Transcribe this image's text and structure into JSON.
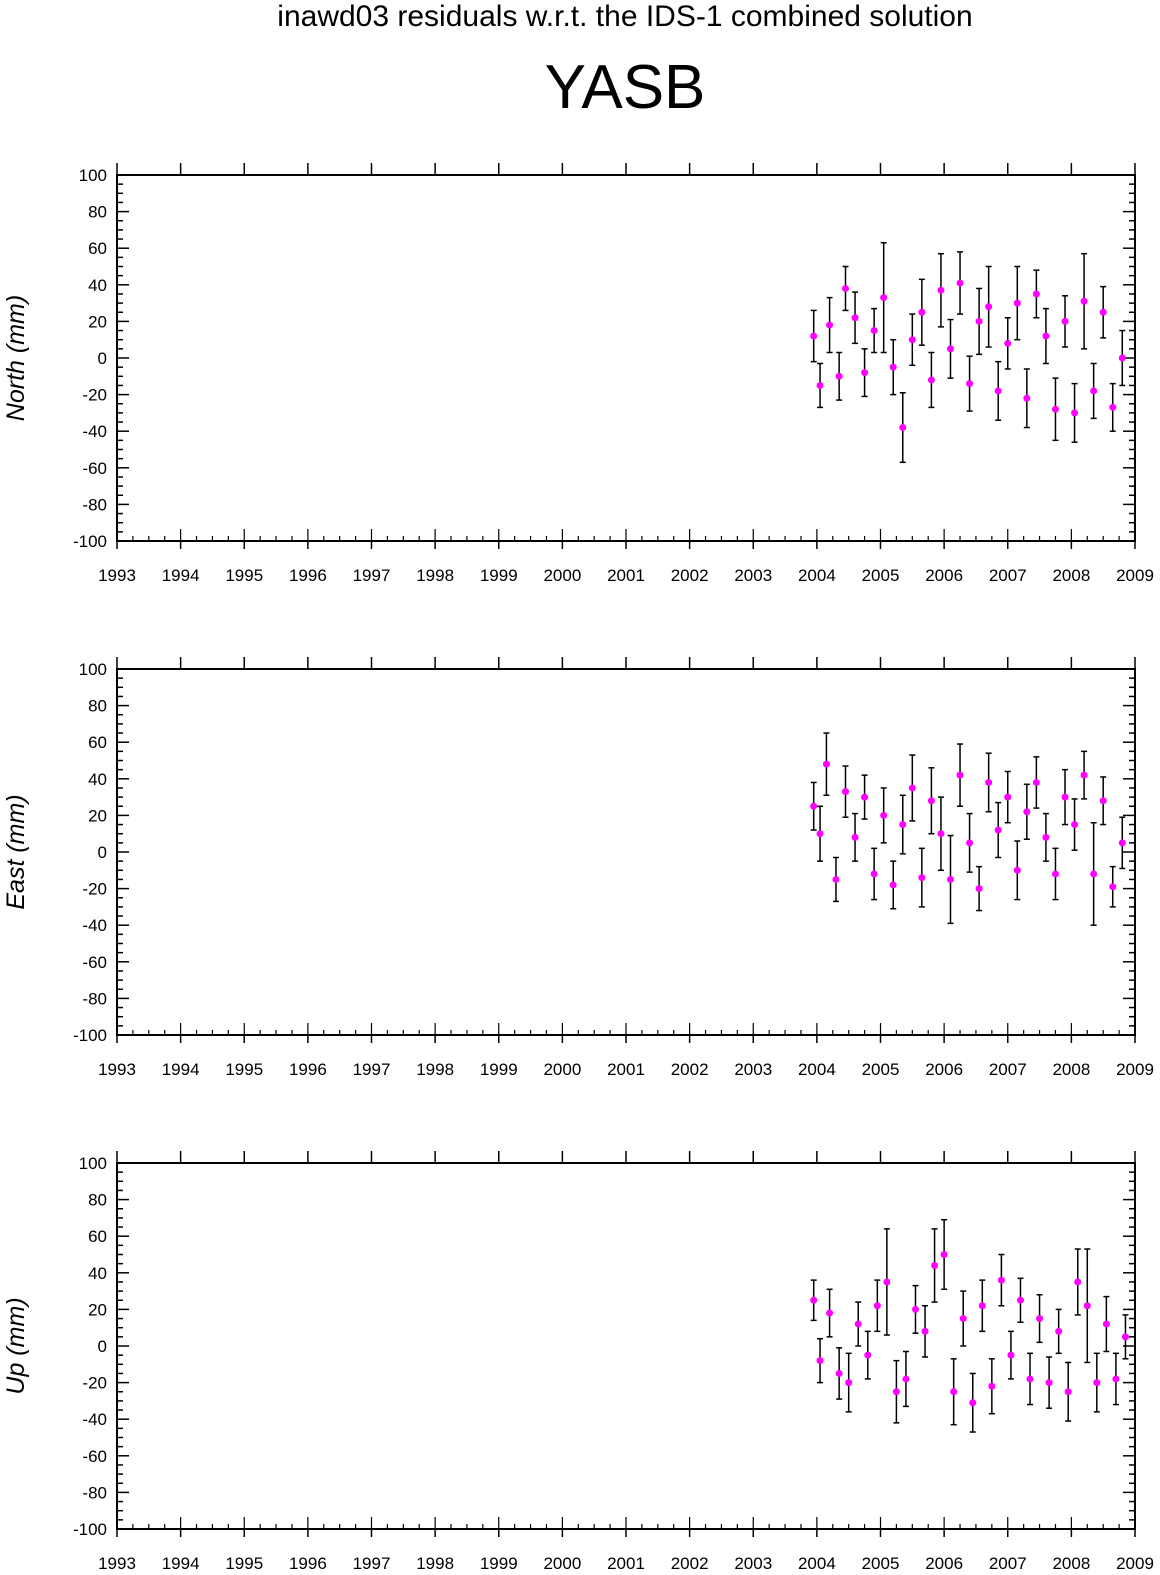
{
  "subtitle": "inawd03 residuals w.r.t. the IDS-1 combined solution",
  "title": "YASB",
  "colors": {
    "marker": "#ff00ff",
    "errorbar": "#000000",
    "axes": "#000000"
  },
  "chart_data": [
    {
      "type": "scatter",
      "ylabel": "North (mm)",
      "xlim": [
        1993,
        2009
      ],
      "ylim": [
        -100,
        100
      ],
      "x_ticks": [
        "1993",
        "1994",
        "1995",
        "1996",
        "1997",
        "1998",
        "1999",
        "2000",
        "2001",
        "2002",
        "2003",
        "2004",
        "2005",
        "2006",
        "2007",
        "2008",
        "2009"
      ],
      "y_ticks": [
        "100",
        "80",
        "60",
        "40",
        "20",
        "0",
        "-20",
        "-40",
        "-60",
        "-80",
        "-100"
      ],
      "grid": false,
      "error_bars": true,
      "series": [
        {
          "x": [
            2003.95,
            2004.05,
            2004.2,
            2004.35,
            2004.45,
            2004.6,
            2004.75,
            2004.9,
            2005.05,
            2005.2,
            2005.35,
            2005.5,
            2005.65,
            2005.8,
            2005.95,
            2006.1,
            2006.25,
            2006.4,
            2006.55,
            2006.7,
            2006.85,
            2007.0,
            2007.15,
            2007.3,
            2007.45,
            2007.6,
            2007.75,
            2007.9,
            2008.05,
            2008.2,
            2008.35,
            2008.5,
            2008.65,
            2008.8
          ],
          "y": [
            12,
            -15,
            18,
            -10,
            38,
            22,
            -8,
            15,
            33,
            -5,
            -38,
            10,
            25,
            -12,
            37,
            5,
            41,
            -14,
            20,
            28,
            -18,
            8,
            30,
            -22,
            35,
            12,
            -28,
            20,
            -30,
            31,
            -18,
            25,
            -27,
            0
          ],
          "err": [
            14,
            12,
            15,
            13,
            12,
            14,
            13,
            12,
            30,
            15,
            19,
            14,
            18,
            15,
            20,
            16,
            17,
            15,
            18,
            22,
            16,
            14,
            20,
            16,
            13,
            15,
            17,
            14,
            16,
            26,
            15,
            14,
            13,
            15
          ]
        }
      ]
    },
    {
      "type": "scatter",
      "ylabel": "East (mm)",
      "xlim": [
        1993,
        2009
      ],
      "ylim": [
        -100,
        100
      ],
      "x_ticks": [
        "1993",
        "1994",
        "1995",
        "1996",
        "1997",
        "1998",
        "1999",
        "2000",
        "2001",
        "2002",
        "2003",
        "2004",
        "2005",
        "2006",
        "2007",
        "2008",
        "2009"
      ],
      "y_ticks": [
        "100",
        "80",
        "60",
        "40",
        "20",
        "0",
        "-20",
        "-40",
        "-60",
        "-80",
        "-100"
      ],
      "grid": false,
      "error_bars": true,
      "series": [
        {
          "x": [
            2003.95,
            2004.05,
            2004.15,
            2004.3,
            2004.45,
            2004.6,
            2004.75,
            2004.9,
            2005.05,
            2005.2,
            2005.35,
            2005.5,
            2005.65,
            2005.8,
            2005.95,
            2006.1,
            2006.25,
            2006.4,
            2006.55,
            2006.7,
            2006.85,
            2007.0,
            2007.15,
            2007.3,
            2007.45,
            2007.6,
            2007.75,
            2007.9,
            2008.05,
            2008.2,
            2008.35,
            2008.5,
            2008.65,
            2008.8
          ],
          "y": [
            25,
            10,
            48,
            -15,
            33,
            8,
            30,
            -12,
            20,
            -18,
            15,
            35,
            -14,
            28,
            10,
            -15,
            42,
            5,
            -20,
            38,
            12,
            30,
            -10,
            22,
            38,
            8,
            -12,
            30,
            15,
            42,
            -12,
            28,
            -19,
            5
          ],
          "err": [
            13,
            15,
            17,
            12,
            14,
            13,
            12,
            14,
            15,
            13,
            16,
            18,
            16,
            18,
            20,
            24,
            17,
            16,
            12,
            16,
            15,
            14,
            16,
            15,
            14,
            13,
            14,
            15,
            14,
            13,
            28,
            13,
            11,
            14
          ]
        }
      ]
    },
    {
      "type": "scatter",
      "ylabel": "Up (mm)",
      "xlim": [
        1993,
        2009
      ],
      "ylim": [
        -100,
        100
      ],
      "x_ticks": [
        "1993",
        "1994",
        "1995",
        "1996",
        "1997",
        "1998",
        "1999",
        "2000",
        "2001",
        "2002",
        "2003",
        "2004",
        "2005",
        "2006",
        "2007",
        "2008",
        "2009"
      ],
      "y_ticks": [
        "100",
        "80",
        "60",
        "40",
        "20",
        "0",
        "-20",
        "-40",
        "-60",
        "-80",
        "-100"
      ],
      "grid": false,
      "error_bars": true,
      "series": [
        {
          "x": [
            2003.95,
            2004.05,
            2004.2,
            2004.35,
            2004.5,
            2004.65,
            2004.8,
            2004.95,
            2005.1,
            2005.25,
            2005.4,
            2005.55,
            2005.7,
            2005.85,
            2006.0,
            2006.15,
            2006.3,
            2006.45,
            2006.6,
            2006.75,
            2006.9,
            2007.05,
            2007.2,
            2007.35,
            2007.5,
            2007.65,
            2007.8,
            2007.95,
            2008.1,
            2008.25,
            2008.4,
            2008.55,
            2008.7,
            2008.85
          ],
          "y": [
            25,
            -8,
            18,
            -15,
            -20,
            12,
            -5,
            22,
            35,
            -25,
            -18,
            20,
            8,
            44,
            50,
            -25,
            15,
            -31,
            22,
            -22,
            36,
            -5,
            25,
            -18,
            15,
            -20,
            8,
            -25,
            35,
            22,
            -20,
            12,
            -18,
            5
          ],
          "err": [
            11,
            12,
            13,
            14,
            16,
            12,
            13,
            14,
            29,
            17,
            15,
            13,
            14,
            20,
            19,
            18,
            15,
            16,
            14,
            15,
            14,
            13,
            12,
            14,
            13,
            14,
            12,
            16,
            18,
            31,
            16,
            15,
            14,
            12
          ]
        }
      ]
    }
  ]
}
